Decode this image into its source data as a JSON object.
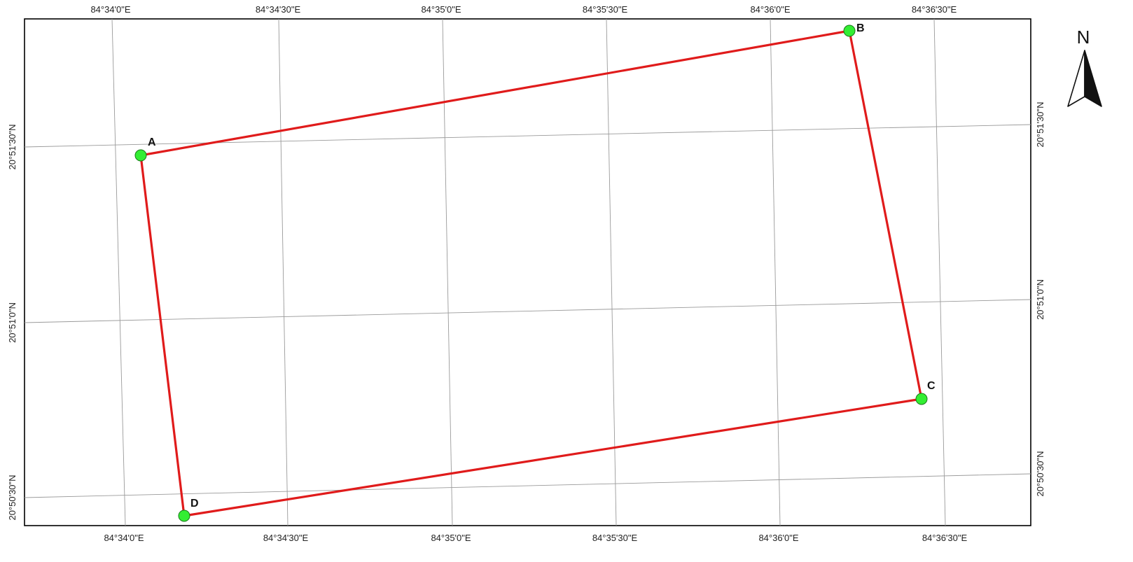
{
  "map": {
    "top_axis_labels": [
      "84°34'0\"E",
      "84°34'30\"E",
      "84°35'0\"E",
      "84°35'30\"E",
      "84°36'0\"E",
      "84°36'30\"E"
    ],
    "bottom_axis_labels": [
      "84°34'0\"E",
      "84°34'30\"E",
      "84°35'0\"E",
      "84°35'30\"E",
      "84°36'0\"E",
      "84°36'30\"E"
    ],
    "left_axis_labels": [
      "20°51'30\"N",
      "20°51'0\"N",
      "20°50'30\"N"
    ],
    "right_axis_labels": [
      "20°51'30\"N",
      "20°51'0\"N",
      "20°50'30\"N"
    ],
    "points": [
      {
        "label": "A"
      },
      {
        "label": "B"
      },
      {
        "label": "C"
      },
      {
        "label": "D"
      }
    ],
    "north_arrow_label": "N",
    "colors": {
      "boundary": "#e01b1b",
      "point_fill": "#33ee33",
      "graticule": "#9a9a9a",
      "frame": "#000000"
    }
  }
}
